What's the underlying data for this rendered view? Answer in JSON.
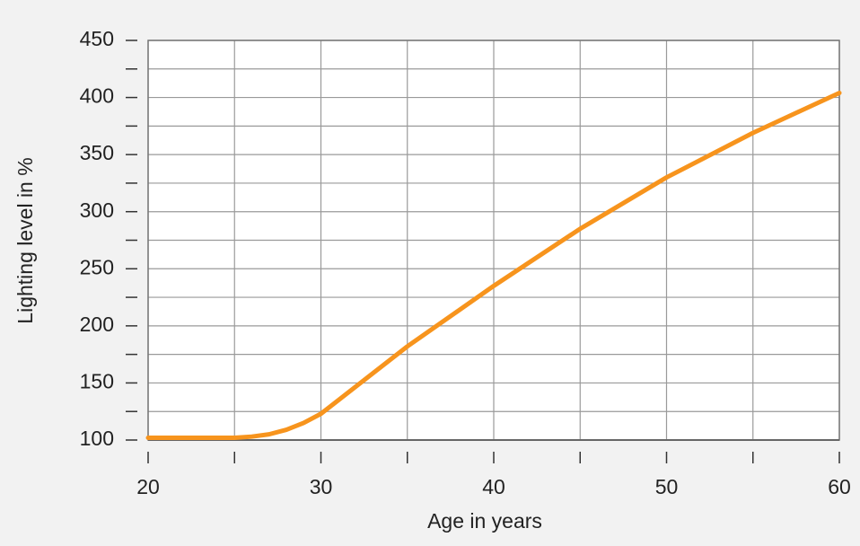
{
  "chart_data": {
    "type": "line",
    "x_label": "Age in years",
    "y_label": "Lighting level in %",
    "x": [
      20,
      25,
      26,
      27,
      28,
      29,
      30,
      35,
      40,
      45,
      50,
      55,
      60
    ],
    "series": [
      {
        "color": "#f7941d",
        "values": [
          102,
          102,
          103,
          105,
          109,
          115,
          123,
          182,
          235,
          285,
          330,
          369,
          404
        ]
      }
    ],
    "xlim": [
      20,
      60
    ],
    "xticks": [
      20,
      30,
      40,
      50,
      60
    ],
    "xminorticks": [
      25,
      35,
      45,
      55
    ],
    "ylim": [
      100,
      450
    ],
    "yticks": [
      100,
      150,
      200,
      250,
      300,
      350,
      400,
      450
    ],
    "yminorticks": [
      125,
      175,
      225,
      275,
      325,
      375,
      425
    ],
    "grid": true
  }
}
